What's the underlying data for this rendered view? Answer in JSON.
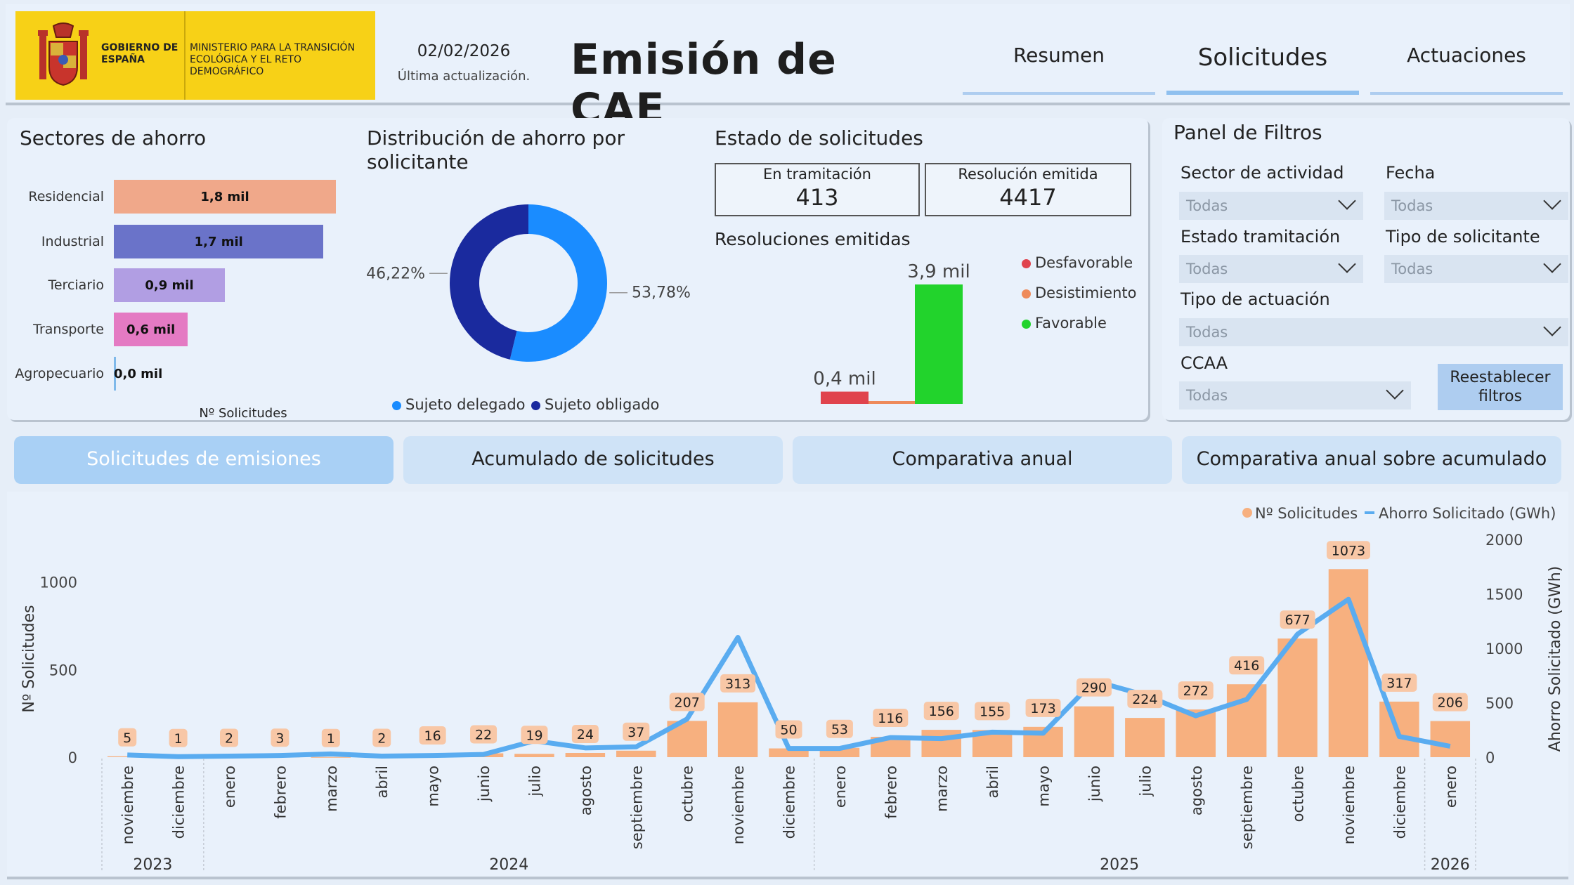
{
  "header": {
    "logo_gobierno": "GOBIERNO DE ESPAÑA",
    "logo_ministerio": "MINISTERIO PARA LA TRANSICIÓN ECOLÓGICA Y EL RETO DEMOGRÁFICO",
    "date": "02/02/2026",
    "date_label": "Última actualización.",
    "title": "Emisión de CAE",
    "tabs": [
      {
        "label": "Resumen"
      },
      {
        "label": "Solicitudes"
      },
      {
        "label": "Actuaciones"
      }
    ]
  },
  "sectores": {
    "title": "Sectores de ahorro",
    "axis_label": "Nº Solicitudes",
    "items": [
      {
        "label": "Residencial",
        "value_label": "1,8 mil",
        "value": 1.8,
        "color": "#f0a88a"
      },
      {
        "label": "Industrial",
        "value_label": "1,7 mil",
        "value": 1.7,
        "color": "#6a73c9"
      },
      {
        "label": "Terciario",
        "value_label": "0,9 mil",
        "value": 0.9,
        "color": "#b19ee3"
      },
      {
        "label": "Transporte",
        "value_label": "0,6 mil",
        "value": 0.6,
        "color": "#e47ac3"
      },
      {
        "label": "Agropecuario",
        "value_label": "0,0 mil",
        "value": 0.0,
        "color": "#7fb9ea"
      }
    ]
  },
  "distribucion": {
    "title": "Distribución de ahorro por solicitante",
    "slices": [
      {
        "name": "Sujeto delegado",
        "value": 53.78,
        "label": "53,78%",
        "color": "#1a8cff"
      },
      {
        "name": "Sujeto obligado",
        "value": 46.22,
        "label": "46,22%",
        "color": "#1a2a9e"
      }
    ]
  },
  "estado": {
    "title": "Estado de solicitudes",
    "boxes": [
      {
        "label": "En tramitación",
        "value": "413"
      },
      {
        "label": "Resolución emitida",
        "value": "4417"
      }
    ],
    "resoluciones_title": "Resoluciones emitidas",
    "bars": [
      {
        "name": "Desfavorable",
        "value": 0.4,
        "label": "0,4 mil",
        "color": "#e0434d"
      },
      {
        "name": "Desistimiento",
        "value": 0.02,
        "label": "",
        "color": "#ee8a5a"
      },
      {
        "name": "Favorable",
        "value": 3.9,
        "label": "3,9 mil",
        "color": "#22d32c"
      }
    ]
  },
  "filtros": {
    "title": "Panel de Filtros",
    "fields": [
      {
        "label": "Sector de actividad",
        "value": "Todas"
      },
      {
        "label": "Fecha",
        "value": "Todas"
      },
      {
        "label": "Estado tramitación",
        "value": "Todas"
      },
      {
        "label": "Tipo de solicitante",
        "value": "Todas"
      },
      {
        "label": "Tipo de actuación",
        "value": "Todas"
      },
      {
        "label": "CCAA",
        "value": "Todas"
      }
    ],
    "reset_label": "Reestablecer filtros"
  },
  "bottom_tabs": [
    {
      "label": "Solicitudes de emisiones"
    },
    {
      "label": "Acumulado de solicitudes"
    },
    {
      "label": "Comparativa anual"
    },
    {
      "label": "Comparativa anual sobre acumulado"
    }
  ],
  "chart_data": {
    "type": "bar",
    "categories": [
      "noviembre",
      "diciembre",
      "enero",
      "febrero",
      "marzo",
      "abril",
      "mayo",
      "junio",
      "julio",
      "agosto",
      "septiembre",
      "octubre",
      "noviembre",
      "diciembre",
      "enero",
      "febrero",
      "marzo",
      "abril",
      "mayo",
      "junio",
      "julio",
      "agosto",
      "septiembre",
      "octubre",
      "noviembre",
      "diciembre",
      "enero"
    ],
    "years": [
      {
        "label": "2023",
        "start": 0,
        "end": 1
      },
      {
        "label": "2024",
        "start": 2,
        "end": 13
      },
      {
        "label": "2025",
        "start": 14,
        "end": 25
      },
      {
        "label": "2026",
        "start": 26,
        "end": 26
      }
    ],
    "series": [
      {
        "name": "Nº Solicitudes",
        "type": "bar",
        "axis": "left",
        "color": "#f7b07f",
        "values": [
          5,
          1,
          2,
          3,
          1,
          2,
          16,
          22,
          19,
          24,
          37,
          207,
          313,
          50,
          53,
          116,
          156,
          155,
          173,
          290,
          224,
          272,
          416,
          677,
          1073,
          317,
          206
        ]
      },
      {
        "name": "Ahorro Solicitado (GWh)",
        "type": "line",
        "axis": "right",
        "color": "#5aacf0",
        "values": [
          20,
          5,
          10,
          15,
          30,
          10,
          15,
          25,
          150,
          85,
          95,
          350,
          1100,
          80,
          80,
          180,
          170,
          230,
          220,
          700,
          570,
          380,
          530,
          1130,
          1450,
          190,
          100
        ]
      }
    ],
    "ylabel": "Nº Solicitudes",
    "y2label": "Ahorro Solicitado (GWh)",
    "ylim": [
      0,
      1200
    ],
    "y2lim": [
      0,
      2000
    ],
    "yticks": [
      0,
      500,
      1000
    ],
    "y2ticks": [
      0,
      500,
      1000,
      1500,
      2000
    ],
    "legend_position": "top-right"
  }
}
